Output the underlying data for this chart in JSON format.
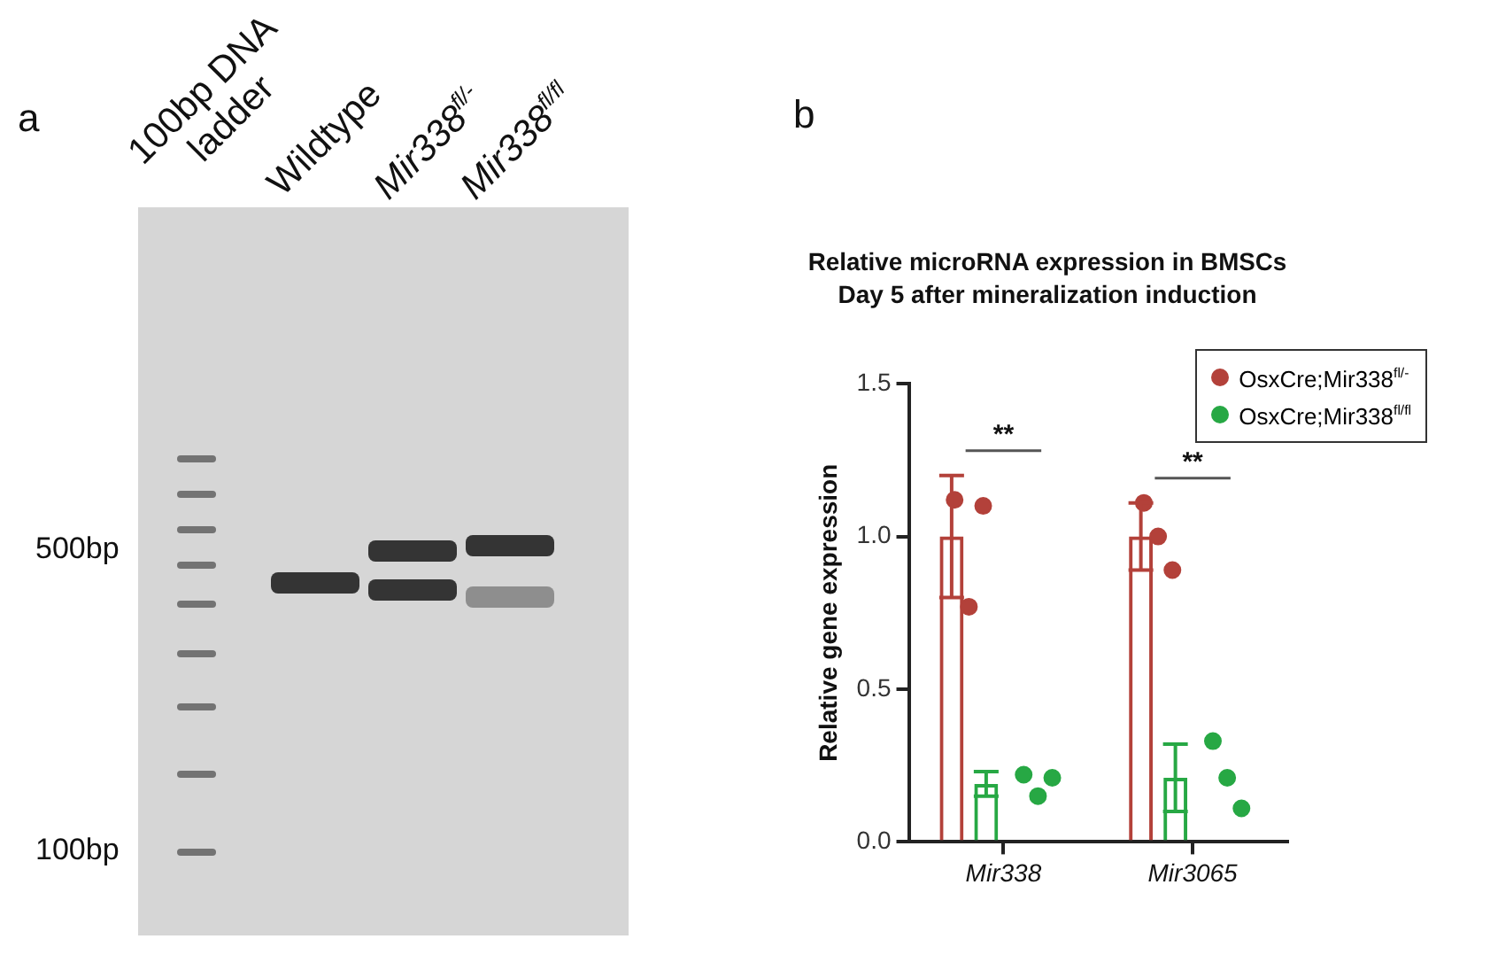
{
  "chart_data": [
    {
      "type": "other",
      "annotations": [
        "a",
        "100bp DNA ladder",
        "Wildtype",
        "Mir338$^{fl/-}$",
        "Mir338$^{fl/fl}$",
        "500bp",
        "100bp"
      ]
    },
    {
      "type": "bar",
      "title": "Relative microRNA expression in BMSCs",
      "subtitle": "Day 5 after mineralization induction",
      "ylabel": "Relative gene expression",
      "categories": [
        "Mir338",
        "Mir3065"
      ],
      "series": [
        {
          "name": "OsxCre;Mir338$^{fl/-}$",
          "color": "#b3413a",
          "values": [
            1.0,
            1.0
          ],
          "errors": [
            0.2,
            0.11
          ]
        },
        {
          "name": "OsxCre;Mir338$^{fl/fl}$",
          "color": "#27a844",
          "values": [
            0.19,
            0.21
          ],
          "errors": [
            0.04,
            0.11
          ]
        },
        {
          "type": "scatter",
          "color": "#b3413a",
          "x": [
            "Mir338",
            "Mir338",
            "Mir338",
            "Mir3065",
            "Mir3065",
            "Mir3065"
          ],
          "values": [
            1.12,
            0.77,
            1.1,
            1.11,
            1.0,
            0.89
          ]
        },
        {
          "type": "scatter",
          "color": "#27a844",
          "x": [
            "Mir338",
            "Mir338",
            "Mir338",
            "Mir3065",
            "Mir3065",
            "Mir3065"
          ],
          "values": [
            0.22,
            0.15,
            0.21,
            0.33,
            0.21,
            0.11
          ]
        }
      ],
      "ylim": [
        0,
        1.5
      ],
      "yticks": [
        {
          "value": 0,
          "label": "0.0"
        },
        0.5,
        {
          "value": 1,
          "label": "1.0"
        },
        1.5
      ],
      "annotations": [
        "b",
        "**",
        "**"
      ],
      "legend": "top right",
      "marker": "circle"
    }
  ]
}
